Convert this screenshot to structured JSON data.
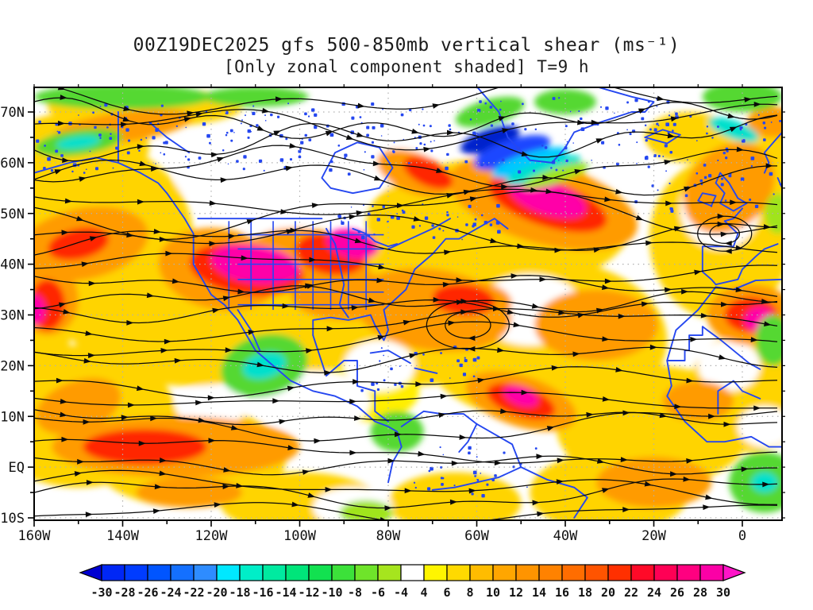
{
  "title": {
    "line1": "00Z19DEC2025 gfs 500-850mb vertical shear (ms⁻¹)",
    "line2": "[Only zonal component shaded] T=9 h"
  },
  "chart_data": {
    "type": "heatmap",
    "subtype": "streamline-shaded-map",
    "title": "00Z19DEC2025 gfs 500-850mb vertical shear (ms⁻¹)",
    "subtitle": "[Only zonal component shaded] T=9 h",
    "model": "gfs",
    "init_time": "00Z19DEC2025",
    "forecast_hour": "T=9 h",
    "units": "ms⁻¹",
    "grid": "dotted-gray",
    "x_axis": {
      "label": "longitude",
      "tick_labels": [
        "160W",
        "140W",
        "120W",
        "100W",
        "80W",
        "60W",
        "40W",
        "20W",
        "0"
      ],
      "tick_values": [
        -160,
        -140,
        -120,
        -100,
        -80,
        -60,
        -40,
        -20,
        0
      ],
      "range_deg": [
        -160,
        9
      ]
    },
    "y_axis": {
      "label": "latitude",
      "tick_labels": [
        "70N",
        "60N",
        "50N",
        "40N",
        "30N",
        "20N",
        "10N",
        "EQ",
        "10S"
      ],
      "tick_values": [
        70,
        60,
        50,
        40,
        30,
        20,
        10,
        0,
        -10
      ],
      "range_deg": [
        -10.5,
        74.9
      ]
    },
    "colorbar": {
      "orientation": "horizontal",
      "labels": [
        "-30",
        "-28",
        "-26",
        "-24",
        "-22",
        "-20",
        "-18",
        "-16",
        "-14",
        "-12",
        "-10",
        "-8",
        "-6",
        "-4",
        "4",
        "6",
        "8",
        "10",
        "12",
        "14",
        "16",
        "18",
        "20",
        "22",
        "24",
        "26",
        "28",
        "30"
      ],
      "cell_colors": [
        "#0027f5",
        "#003cff",
        "#0055ff",
        "#1470ff",
        "#2e8cff",
        "#00e8ff",
        "#00eec8",
        "#00eaa0",
        "#00e57a",
        "#12e150",
        "#3ce13a",
        "#6fe42a",
        "#a6e51e",
        "#ffffff",
        "#fff500",
        "#ffd900",
        "#ffbc00",
        "#ffa600",
        "#ff9400",
        "#ff8200",
        "#ff6d00",
        "#ff5400",
        "#ff3000",
        "#ff0a28",
        "#ff0055",
        "#ff0080",
        "#fb00a6"
      ],
      "left_arrow_color": "#0000d2",
      "right_arrow_color": "#ff14c8"
    },
    "palette": {
      "y": "#ffd400",
      "y2": "#ffee00",
      "o": "#ff9b00",
      "r": "#ff2600",
      "m": "#ff00a8",
      "g": "#55d830",
      "gl": "#a0e41e",
      "c": "#00e0cc",
      "cb": "#00c8ff",
      "b": "#1e46ff",
      "db": "#0020cc",
      "w": "#ffffff"
    },
    "shading_features": [
      [
        -150,
        45,
        26,
        20,
        0,
        "y"
      ],
      [
        -125,
        30,
        28,
        14,
        0,
        "y"
      ],
      [
        -150,
        10,
        22,
        14,
        0,
        "y"
      ],
      [
        -125,
        2,
        22,
        10,
        0,
        "y"
      ],
      [
        -95,
        25,
        20,
        10,
        0,
        "y"
      ],
      [
        -75,
        30,
        25,
        14,
        0,
        "y"
      ],
      [
        -45,
        25,
        28,
        16,
        0,
        "y"
      ],
      [
        -55,
        48,
        30,
        13,
        0,
        "y"
      ],
      [
        -20,
        8,
        22,
        12,
        0,
        "y"
      ],
      [
        -30,
        -5,
        18,
        8,
        0,
        "y"
      ],
      [
        -5,
        45,
        16,
        16,
        0,
        "y"
      ],
      [
        2,
        15,
        14,
        12,
        0,
        "y"
      ],
      [
        -150,
        63,
        16,
        7,
        0,
        "y"
      ],
      [
        -135,
        71,
        22,
        4,
        0,
        "y"
      ],
      [
        -100,
        -7,
        18,
        6,
        0,
        "y"
      ],
      [
        -65,
        -7,
        15,
        6,
        0,
        "y"
      ],
      [
        5,
        60,
        8,
        8,
        0,
        "y"
      ],
      [
        -12,
        65,
        10,
        5,
        0,
        "y"
      ],
      [
        -85,
        15,
        12,
        6,
        0,
        "y2"
      ],
      [
        -160,
        25,
        8,
        10,
        0,
        "y"
      ],
      [
        -90,
        63,
        20,
        9,
        0,
        "w"
      ],
      [
        -118,
        57,
        10,
        5,
        0,
        "w"
      ],
      [
        -48,
        31,
        12,
        7,
        0,
        "w"
      ],
      [
        -97,
        13,
        13,
        6,
        0,
        "w"
      ],
      [
        -82,
        20,
        8,
        5,
        0,
        "w"
      ],
      [
        -5,
        51,
        9,
        8,
        0,
        "w"
      ],
      [
        -88,
        -8,
        9,
        4,
        0,
        "w"
      ],
      [
        -105,
        49,
        8,
        4,
        0,
        "w"
      ],
      [
        -3,
        20,
        7,
        5,
        0,
        "w"
      ],
      [
        -28,
        60,
        7,
        4,
        0,
        "w"
      ],
      [
        5,
        8,
        6,
        4,
        0,
        "w"
      ],
      [
        -120,
        12,
        8,
        4,
        0,
        "w"
      ],
      [
        -149,
        44,
        15,
        7,
        -12,
        "o"
      ],
      [
        -118,
        39,
        14,
        8,
        10,
        "o"
      ],
      [
        -98,
        41,
        14,
        6,
        8,
        "o"
      ],
      [
        -70,
        31,
        18,
        8,
        8,
        "o"
      ],
      [
        -33,
        28,
        14,
        7,
        0,
        "o"
      ],
      [
        -128,
        4,
        28,
        6,
        0,
        "o"
      ],
      [
        -150,
        12,
        10,
        5,
        -20,
        "o"
      ],
      [
        -50,
        13,
        13,
        5,
        18,
        "o"
      ],
      [
        -45,
        52,
        22,
        8,
        16,
        "o"
      ],
      [
        2,
        30,
        10,
        6,
        0,
        "o"
      ],
      [
        -140,
        67,
        16,
        3,
        -8,
        "o"
      ],
      [
        -3,
        55,
        9,
        10,
        45,
        "o"
      ],
      [
        -20,
        -3,
        13,
        5,
        0,
        "o"
      ],
      [
        -157,
        33,
        7,
        7,
        0,
        "o"
      ],
      [
        -74,
        58,
        9,
        4,
        22,
        "o"
      ],
      [
        -90,
        34,
        12,
        5,
        0,
        "o"
      ],
      [
        -62,
        33,
        10,
        4,
        5,
        "o"
      ],
      [
        -10,
        13,
        8,
        4,
        0,
        "o"
      ],
      [
        7,
        68,
        6,
        3,
        0,
        "o"
      ],
      [
        -125,
        -5,
        12,
        3,
        0,
        "o"
      ],
      [
        -112,
        39,
        13,
        5,
        8,
        "r"
      ],
      [
        -93,
        42,
        8,
        4,
        10,
        "r"
      ],
      [
        -44,
        52,
        14,
        4.5,
        18,
        "r"
      ],
      [
        -135,
        4,
        14,
        3.5,
        0,
        "r"
      ],
      [
        -50,
        13,
        8,
        3,
        18,
        "r"
      ],
      [
        2,
        30,
        6,
        3.5,
        0,
        "r"
      ],
      [
        -71,
        58,
        6,
        2.5,
        25,
        "r"
      ],
      [
        -63,
        33,
        7,
        3,
        5,
        "r"
      ],
      [
        -157,
        32,
        4,
        5,
        0,
        "r"
      ],
      [
        -150,
        44,
        7,
        3,
        -12,
        "r"
      ],
      [
        -110,
        40,
        10,
        3.8,
        8,
        "m"
      ],
      [
        -88,
        44,
        6,
        2.8,
        12,
        "m"
      ],
      [
        -44,
        53,
        9,
        3.2,
        18,
        "m"
      ],
      [
        -50,
        14,
        4,
        1.8,
        20,
        "m"
      ],
      [
        4,
        29,
        3.5,
        2.5,
        0,
        "m"
      ],
      [
        -160,
        31,
        2.5,
        3,
        0,
        "m"
      ],
      [
        -140,
        73,
        20,
        2.5,
        0,
        "g"
      ],
      [
        -110,
        73,
        12,
        2,
        0,
        "g"
      ],
      [
        -108,
        20,
        10,
        6,
        -15,
        "g"
      ],
      [
        -108,
        20,
        5,
        2.5,
        -15,
        "c"
      ],
      [
        -78,
        7,
        6,
        4,
        0,
        "g"
      ],
      [
        -150,
        64,
        10,
        2.5,
        -8,
        "g"
      ],
      [
        -150,
        64,
        5,
        1.2,
        -8,
        "c"
      ],
      [
        -57,
        70,
        8,
        2.5,
        -15,
        "g"
      ],
      [
        0,
        73,
        9,
        3,
        0,
        "g"
      ],
      [
        -40,
        72,
        7,
        2.5,
        0,
        "g"
      ],
      [
        5,
        -3,
        8,
        6,
        0,
        "g"
      ],
      [
        5,
        -3,
        3,
        2,
        0,
        "c"
      ],
      [
        7,
        25,
        4,
        5,
        0,
        "g"
      ],
      [
        -2,
        66.5,
        6,
        1.8,
        20,
        "c"
      ],
      [
        -85,
        -9,
        6,
        2.5,
        0,
        "gl"
      ],
      [
        8,
        50,
        3,
        4,
        0,
        "gl"
      ],
      [
        -57,
        64.5,
        7,
        2.2,
        -18,
        "db"
      ],
      [
        -52,
        62,
        9,
        2.6,
        -18,
        "b"
      ],
      [
        -48,
        60,
        9,
        2,
        -18,
        "cb"
      ],
      [
        -45,
        58.5,
        9,
        1.8,
        -18,
        "c"
      ],
      [
        -42,
        57.5,
        8,
        1.5,
        -18,
        "gl"
      ]
    ],
    "overlay_colors": {
      "coastlines": "#2547f0",
      "streamlines": "#0a0a0a",
      "gridlines": "#b0b0b0"
    }
  }
}
